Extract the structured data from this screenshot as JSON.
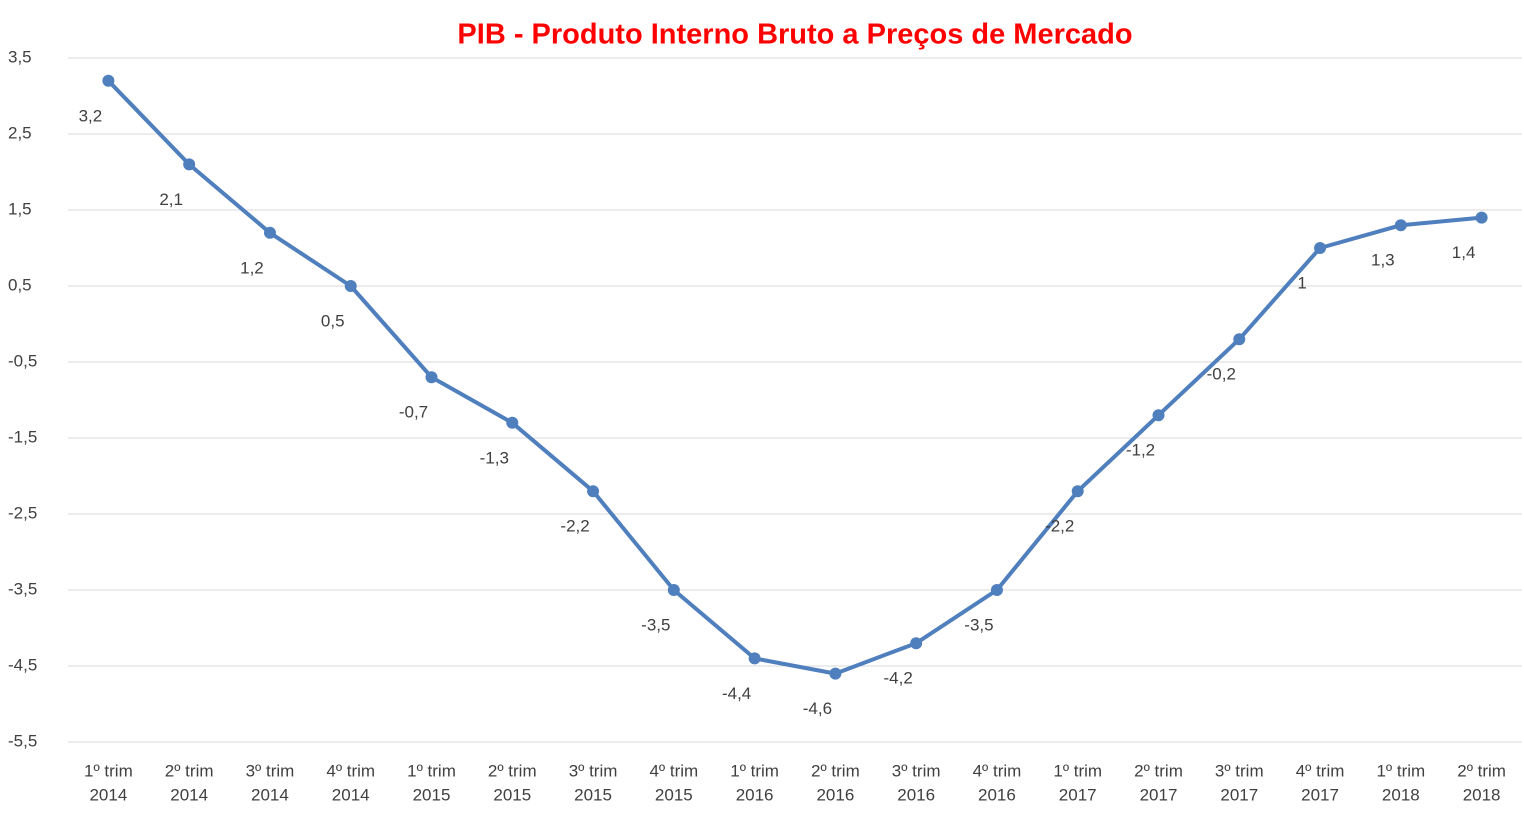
{
  "chart_data": {
    "type": "line",
    "title": "PIB - Produto Interno Bruto a Preços de Mercado",
    "categories": [
      [
        "1º trim",
        "2014"
      ],
      [
        "2º trim",
        "2014"
      ],
      [
        "3º trim",
        "2014"
      ],
      [
        "4º trim",
        "2014"
      ],
      [
        "1º trim",
        "2015"
      ],
      [
        "2º trim",
        "2015"
      ],
      [
        "3º trim",
        "2015"
      ],
      [
        "4º trim",
        "2015"
      ],
      [
        "1º trim",
        "2016"
      ],
      [
        "2º trim",
        "2016"
      ],
      [
        "3º trim",
        "2016"
      ],
      [
        "4º trim",
        "2016"
      ],
      [
        "1º trim",
        "2017"
      ],
      [
        "2º trim",
        "2017"
      ],
      [
        "3º trim",
        "2017"
      ],
      [
        "4º trim",
        "2017"
      ],
      [
        "1º trim",
        "2018"
      ],
      [
        "2º trim",
        "2018"
      ]
    ],
    "values": [
      3.2,
      2.1,
      1.2,
      0.5,
      -0.7,
      -1.3,
      -2.2,
      -3.5,
      -4.4,
      -4.6,
      -4.2,
      -3.5,
      -2.2,
      -1.2,
      -0.2,
      1,
      1.3,
      1.4
    ],
    "value_labels": [
      "3,2",
      "2,1",
      "1,2",
      "0,5",
      "-0,7",
      "-1,3",
      "-2,2",
      "-3,5",
      "-4,4",
      "-4,6",
      "-4,2",
      "-3,5",
      "-2,2",
      "-1,2",
      "-0,2",
      "1",
      "1,3",
      "1,4"
    ],
    "color": "#4f7fbd",
    "ylim": [
      -6,
      4
    ],
    "yticks": [
      {
        "value": -5.5,
        "label": "-5,5"
      },
      {
        "value": -4.5,
        "label": "-4,5"
      },
      {
        "value": -3.5,
        "label": "-3,5"
      },
      {
        "value": -2.5,
        "label": "-2,5"
      },
      {
        "value": -1.5,
        "label": "-1,5"
      },
      {
        "value": -0.5,
        "label": "-0,5"
      },
      {
        "value": 0.5,
        "label": "0,5"
      },
      {
        "value": 1.5,
        "label": "1,5"
      },
      {
        "value": 2.5,
        "label": "2,5"
      },
      {
        "value": 3.5,
        "label": "3,5"
      }
    ],
    "grid": true
  }
}
